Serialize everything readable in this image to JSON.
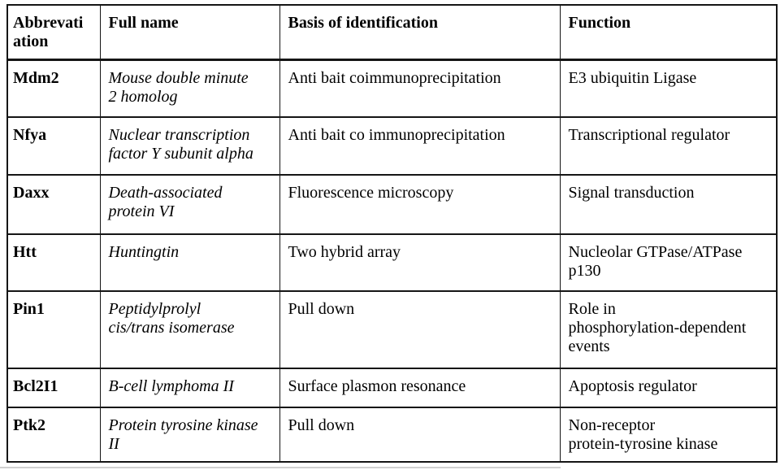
{
  "colors": {
    "border": "#151515",
    "text": "#000000",
    "background": "#ffffff",
    "faint_rule": "#b0b0b0"
  },
  "table": {
    "columns": [
      {
        "label": "Abbrevati\nation"
      },
      {
        "label": "Full name"
      },
      {
        "label": "Basis of identification"
      },
      {
        "label": "Function"
      }
    ],
    "rows": [
      {
        "abbreviation": "Mdm2",
        "full_name": "Mouse double minute\n2 homolog",
        "basis": "Anti bait coimmunoprecipitation",
        "function": "E3 ubiquitin Ligase"
      },
      {
        "abbreviation": "Nfya",
        "full_name": "Nuclear transcription\nfactor Y subunit alpha",
        "basis": "Anti bait co immunoprecipitation",
        "function": "Transcriptional regulator"
      },
      {
        "abbreviation": "Daxx",
        "full_name": "Death-associated\nprotein VI",
        "basis": "Fluorescence microscopy",
        "function": "Signal transduction"
      },
      {
        "abbreviation": "Htt",
        "full_name": "Huntingtin",
        "basis": "Two hybrid array",
        "function": "Nucleolar GTPase/ATPase\np130"
      },
      {
        "abbreviation": "Pin1",
        "full_name": "Peptidylprolyl\ncis/trans isomerase",
        "basis": "Pull down",
        "function": "Role in\nphosphorylation-dependent\nevents"
      },
      {
        "abbreviation": "Bcl2I1",
        "full_name": "B-cell lymphoma II",
        "basis": "Surface plasmon resonance",
        "function": "Apoptosis regulator"
      },
      {
        "abbreviation": "Ptk2",
        "full_name": "Protein tyrosine kinase\nII",
        "basis": "Pull down",
        "function": "Non-receptor\nprotein-tyrosine kinase"
      }
    ]
  }
}
